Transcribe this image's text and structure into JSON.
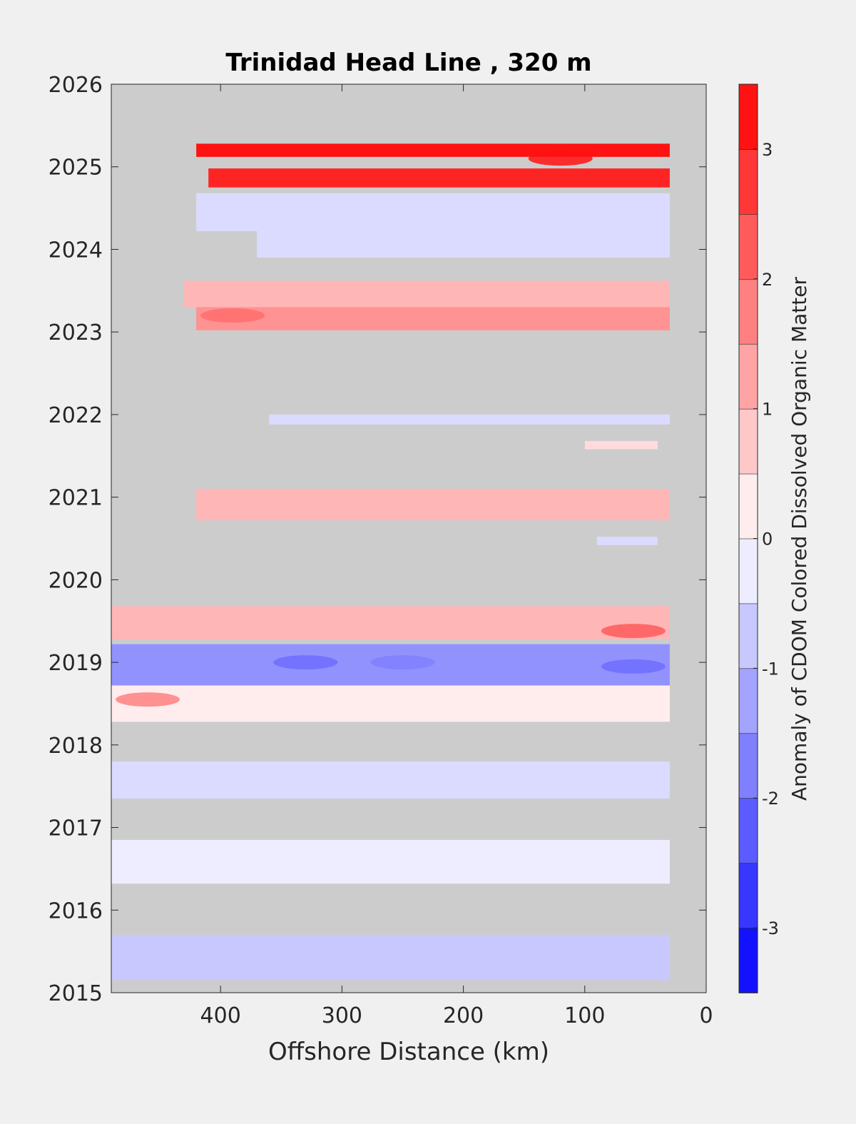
{
  "chart_data": {
    "type": "heatmap",
    "title": "Trinidad Head Line , 320 m",
    "xlabel": "Offshore Distance (km)",
    "ylabel": "",
    "xlim": [
      490,
      0
    ],
    "ylim": [
      2015,
      2026
    ],
    "x_ticks": [
      400,
      300,
      200,
      100,
      0
    ],
    "y_ticks": [
      2015,
      2016,
      2017,
      2018,
      2019,
      2020,
      2021,
      2022,
      2023,
      2024,
      2025,
      2026
    ],
    "background_color": "#cccccc",
    "colorbar": {
      "label": "Anomaly of CDOM Colored Dissolved Organic Matter",
      "range": [
        -3.5,
        3.5
      ],
      "ticks": [
        -3,
        -2,
        -1,
        0,
        1,
        2,
        3
      ],
      "step": 0.25,
      "colormap": "blue-white-red"
    },
    "anomaly_bands": [
      {
        "x_start": 420,
        "x_end": 30,
        "y_bottom": 2025.12,
        "y_top": 2025.28,
        "value": 3.2
      },
      {
        "x_start": 410,
        "x_end": 30,
        "y_bottom": 2024.75,
        "y_top": 2024.98,
        "value": 3.0
      },
      {
        "x_start": 420,
        "x_end": 30,
        "y_bottom": 2024.22,
        "y_top": 2024.68,
        "value": -0.5
      },
      {
        "x_start": 370,
        "x_end": 30,
        "y_bottom": 2023.9,
        "y_top": 2024.22,
        "value": -0.5
      },
      {
        "x_start": 430,
        "x_end": 30,
        "y_bottom": 2023.3,
        "y_top": 2023.62,
        "value": 1.0
      },
      {
        "x_start": 420,
        "x_end": 30,
        "y_bottom": 2023.02,
        "y_top": 2023.3,
        "value": 1.4
      },
      {
        "x_start": 360,
        "x_end": 30,
        "y_bottom": 2021.88,
        "y_top": 2022.0,
        "value": -0.4
      },
      {
        "x_start": 100,
        "x_end": 40,
        "y_bottom": 2021.58,
        "y_top": 2021.68,
        "value": 0.6
      },
      {
        "x_start": 420,
        "x_end": 30,
        "y_bottom": 2020.72,
        "y_top": 2021.1,
        "value": 0.9
      },
      {
        "x_start": 90,
        "x_end": 40,
        "y_bottom": 2020.42,
        "y_top": 2020.52,
        "value": -0.5
      },
      {
        "x_start": 490,
        "x_end": 30,
        "y_bottom": 2019.28,
        "y_top": 2019.68,
        "value": 1.0
      },
      {
        "x_start": 490,
        "x_end": 30,
        "y_bottom": 2018.72,
        "y_top": 2019.22,
        "value": -1.4
      },
      {
        "x_start": 490,
        "x_end": 30,
        "y_bottom": 2018.28,
        "y_top": 2018.72,
        "value": 0.3
      },
      {
        "x_start": 490,
        "x_end": 30,
        "y_bottom": 2017.35,
        "y_top": 2017.8,
        "value": -0.5
      },
      {
        "x_start": 490,
        "x_end": 30,
        "y_bottom": 2016.32,
        "y_top": 2016.85,
        "value": -0.3
      },
      {
        "x_start": 490,
        "x_end": 30,
        "y_bottom": 2015.15,
        "y_top": 2015.7,
        "value": -0.8
      }
    ],
    "anomaly_spots": [
      {
        "x": 460,
        "y": 2018.55,
        "value": 1.8
      },
      {
        "x": 330,
        "y": 2019.0,
        "value": -2.0
      },
      {
        "x": 250,
        "y": 2019.0,
        "value": -1.8
      },
      {
        "x": 60,
        "y": 2019.38,
        "value": 2.2
      },
      {
        "x": 60,
        "y": 2018.95,
        "value": -2.0
      },
      {
        "x": 390,
        "y": 2023.2,
        "value": 2.0
      },
      {
        "x": 120,
        "y": 2025.1,
        "value": 3.3
      }
    ]
  }
}
